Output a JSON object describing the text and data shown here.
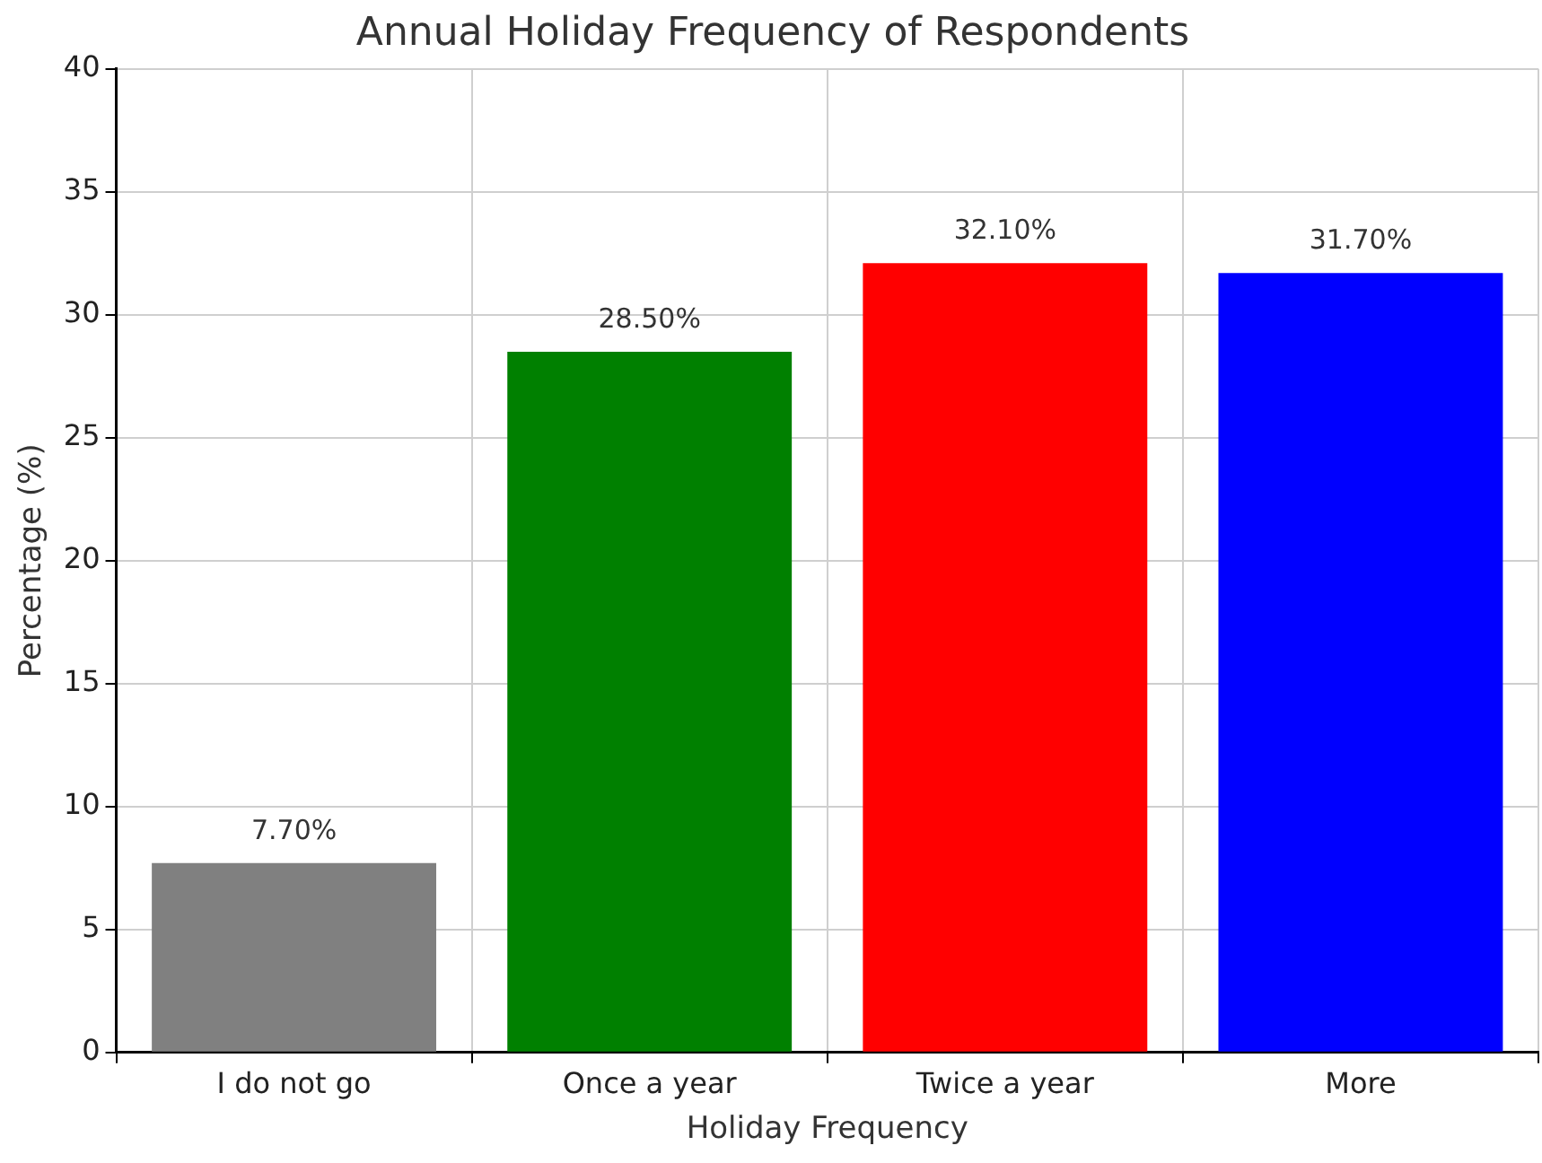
{
  "chart_data": {
    "type": "bar",
    "title": "Annual Holiday Frequency of Respondents",
    "xlabel": "Holiday Frequency",
    "ylabel": "Percentage (%)",
    "categories": [
      "I do not go",
      "Once a year",
      "Twice a year",
      "More"
    ],
    "values": [
      7.7,
      28.5,
      32.1,
      31.7
    ],
    "colors": [
      "#808080",
      "#008000",
      "#ff0000",
      "#0000ff"
    ],
    "value_labels": [
      "7.70%",
      "28.50%",
      "32.10%",
      "31.70%"
    ],
    "ylim": [
      0,
      40
    ],
    "yticks": [
      0,
      5,
      10,
      15,
      20,
      25,
      30,
      35,
      40
    ],
    "grid": true
  }
}
